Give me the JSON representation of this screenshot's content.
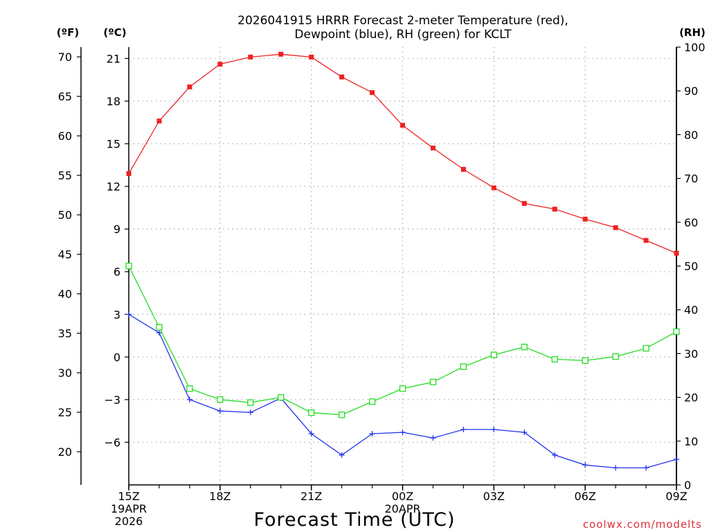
{
  "chart_data": {
    "type": "line",
    "title_line1": "2026041915 HRRR Forecast 2-meter Temperature (red),",
    "title_line2": "Dewpoint (blue), RH (green) for KCLT",
    "xlabel": "Forecast Time (UTC)",
    "credit": "coolwx.com/modelts",
    "left_outer_unit": "(ºF)",
    "left_inner_unit": "(ºC)",
    "right_unit": "(RH)",
    "x": [
      0,
      1,
      2,
      3,
      4,
      5,
      6,
      7,
      8,
      9,
      10,
      11,
      12,
      13,
      14,
      15,
      16,
      17,
      18
    ],
    "xlim": [
      0,
      18
    ],
    "x_ticks": [
      {
        "x": 0,
        "lines": [
          "15Z",
          "19APR",
          "2026"
        ]
      },
      {
        "x": 3,
        "lines": [
          "18Z"
        ]
      },
      {
        "x": 6,
        "lines": [
          "21Z"
        ]
      },
      {
        "x": 9,
        "lines": [
          "00Z",
          "20APR"
        ]
      },
      {
        "x": 12,
        "lines": [
          "03Z"
        ]
      },
      {
        "x": 15,
        "lines": [
          "06Z"
        ]
      },
      {
        "x": 18,
        "lines": [
          "09Z"
        ]
      }
    ],
    "celsius_axis": {
      "range": [
        -9,
        21.8
      ],
      "ticks": [
        21,
        18,
        15,
        12,
        9,
        6,
        3,
        0,
        -3,
        -6
      ]
    },
    "fahrenheit_ticks": [
      70,
      65,
      60,
      55,
      50,
      45,
      40,
      35,
      30,
      25,
      20
    ],
    "rh_axis": {
      "range": [
        0,
        100
      ],
      "ticks": [
        100,
        90,
        80,
        70,
        60,
        50,
        40,
        30,
        20,
        10,
        0
      ]
    },
    "series": [
      {
        "name": "Temperature",
        "units": "C",
        "color": "#ee2222",
        "marker": "filled-square",
        "values": [
          12.9,
          16.6,
          19.0,
          20.6,
          21.1,
          21.3,
          21.1,
          19.7,
          18.6,
          16.3,
          14.7,
          13.2,
          11.9,
          10.8,
          10.4,
          9.7,
          9.1,
          8.2,
          7.3
        ]
      },
      {
        "name": "Dewpoint",
        "units": "C",
        "color": "#2233ee",
        "marker": "plus",
        "values": [
          3.0,
          1.7,
          -3.0,
          -3.8,
          -3.9,
          -2.9,
          -5.4,
          -6.9,
          -5.4,
          -5.3,
          -5.7,
          -5.1,
          -5.1,
          -5.3,
          -6.9,
          -7.6,
          -7.8,
          -7.8,
          -7.2
        ]
      },
      {
        "name": "RH",
        "units": "%",
        "color": "#22dd22",
        "marker": "open-square",
        "values": [
          50.0,
          36.0,
          22.0,
          19.5,
          18.8,
          20.0,
          16.5,
          16.0,
          19.0,
          22.0,
          23.5,
          27.0,
          29.7,
          31.5,
          28.7,
          28.4,
          29.3,
          31.2,
          35.0
        ]
      }
    ]
  }
}
